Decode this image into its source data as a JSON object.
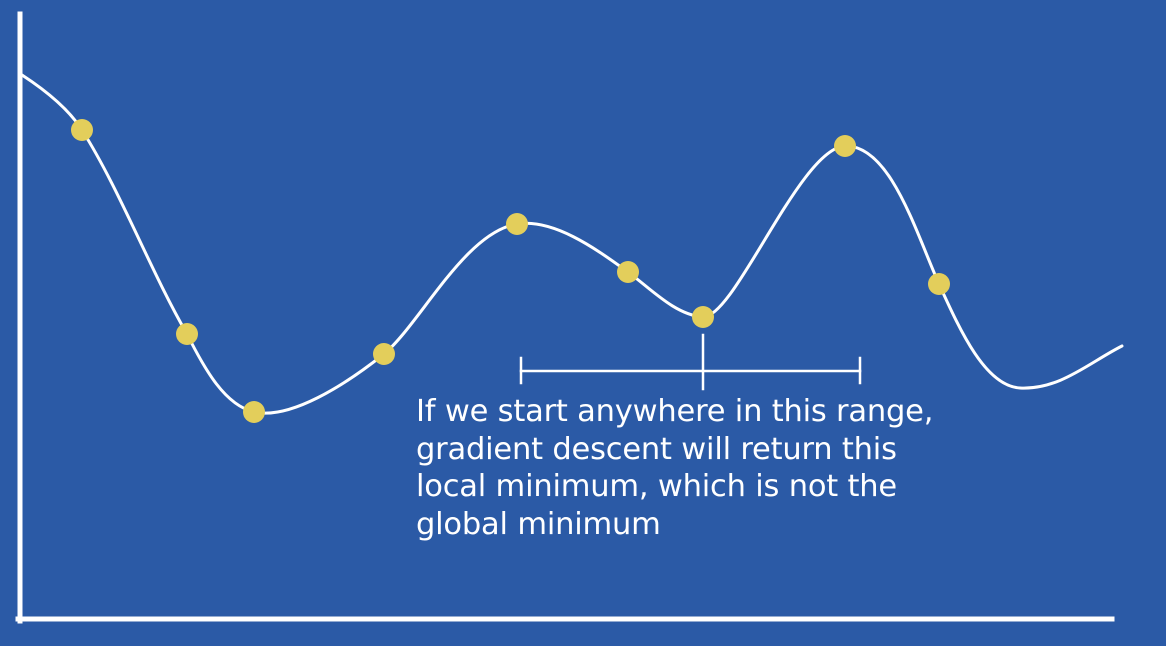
{
  "colors": {
    "background": "#2b5aa6",
    "curve": "#ffffff",
    "axes": "#ffffff",
    "points": "#e3ce5b",
    "text": "#ffffff"
  },
  "curve": {
    "shape": "smooth cost curve with a local minimum (highlighted by a bracket) and a lower global minimum on the right"
  },
  "annotation": {
    "lines": [
      "If we start anywhere in this range,",
      "gradient descent will return this",
      "local minimum, which is not the",
      "global minimum"
    ]
  }
}
